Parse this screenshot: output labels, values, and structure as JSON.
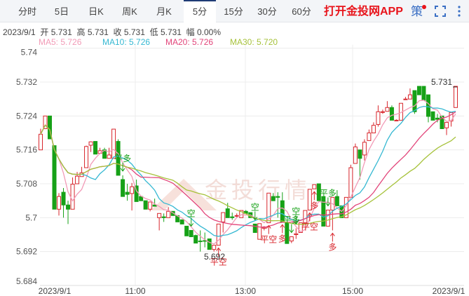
{
  "tabs": [
    {
      "label": "分时"
    },
    {
      "label": "5日"
    },
    {
      "label": "日K"
    },
    {
      "label": "周K"
    },
    {
      "label": "月K"
    },
    {
      "label": "5分",
      "active": true
    },
    {
      "label": "15分"
    },
    {
      "label": "30分"
    },
    {
      "label": "60分"
    }
  ],
  "header": {
    "app_link": "打开金投网APP",
    "strategy_label": "策",
    "icons": [
      "fullscreen-icon",
      "more-vertical-icon"
    ]
  },
  "info": {
    "date": "2023/9/1",
    "open_label": "开",
    "open": "5.731",
    "high_label": "高",
    "high": "5.731",
    "close_label": "收",
    "close": "5.731",
    "low_label": "低",
    "low": "5.731",
    "change_label": "幅",
    "change": "0.00%"
  },
  "ma_legend": [
    {
      "text": "MA5: 5.726",
      "color": "#f29bb7"
    },
    {
      "text": "MA10: 5.726",
      "color": "#35b8d2"
    },
    {
      "text": "MA20: 5.726",
      "color": "#e2457a"
    },
    {
      "text": "MA30: 5.720",
      "color": "#a6c23a"
    }
  ],
  "watermark": "金投行情",
  "chart_data": {
    "type": "candlestick",
    "interval": "5分",
    "ylim": [
      5.684,
      5.74
    ],
    "y_ticks": [
      "5.74",
      "5.732",
      "5.724",
      "5.716",
      "5.708",
      "5.7",
      "5.692",
      "5.684"
    ],
    "x_ticks": [
      "2023/9/1",
      "11:00",
      "13:00",
      "15:00",
      "2023/9/1"
    ],
    "grid": true,
    "colors": {
      "up": "#d8262c",
      "down": "#16a117"
    },
    "max_label": "5.731",
    "min_label": "5.692",
    "ohlc": [
      [
        5.716,
        5.721,
        5.716,
        5.7197
      ],
      [
        5.721,
        5.724,
        5.721,
        5.724
      ],
      [
        5.724,
        5.724,
        5.7186,
        5.7186
      ],
      [
        5.717,
        5.717,
        5.702,
        5.702
      ],
      [
        5.702,
        5.7058,
        5.7005,
        5.705
      ],
      [
        5.706,
        5.707,
        5.7,
        5.703
      ],
      [
        5.703,
        5.704,
        5.6985,
        5.702
      ],
      [
        5.702,
        5.7095,
        5.702,
        5.7079
      ],
      [
        5.708,
        5.7108,
        5.708,
        5.7098
      ],
      [
        5.7097,
        5.712,
        5.7097,
        5.7106
      ],
      [
        5.7118,
        5.717,
        5.7118,
        5.7168
      ],
      [
        5.7171,
        5.718,
        5.7155,
        5.7179
      ],
      [
        5.718,
        5.718,
        5.715,
        5.715
      ],
      [
        5.7152,
        5.7165,
        5.715,
        5.7158
      ],
      [
        5.716,
        5.7165,
        5.714,
        5.714
      ],
      [
        5.714,
        5.7165,
        5.714,
        5.7148
      ],
      [
        5.714,
        5.7209,
        5.714,
        5.7209
      ],
      [
        5.718,
        5.7185,
        5.71,
        5.71
      ],
      [
        5.709,
        5.71,
        5.705,
        5.705
      ],
      [
        5.706,
        5.708,
        5.704,
        5.7055
      ],
      [
        5.7057,
        5.7082,
        5.7017,
        5.7073
      ],
      [
        5.7075,
        5.709,
        5.7038,
        5.7038
      ],
      [
        5.705,
        5.705,
        5.704,
        5.704
      ],
      [
        5.704,
        5.704,
        5.702,
        5.702
      ],
      [
        5.702,
        5.7037,
        5.7015,
        5.7037
      ],
      [
        5.703,
        5.7045,
        5.7027,
        5.7027
      ],
      [
        5.7,
        5.701,
        5.697,
        5.701
      ],
      [
        5.7002,
        5.701,
        5.699,
        5.7
      ],
      [
        5.7,
        5.7025,
        5.7,
        5.7015
      ],
      [
        5.7015,
        5.7015,
        5.7005,
        5.7005
      ],
      [
        5.7005,
        5.7005,
        5.699,
        5.699
      ],
      [
        5.6995,
        5.6995,
        5.6985,
        5.6985
      ],
      [
        5.698,
        5.698,
        5.6957,
        5.6957
      ],
      [
        5.697,
        5.697,
        5.6955,
        5.6955
      ],
      [
        5.6958,
        5.696,
        5.694,
        5.694
      ],
      [
        5.6945,
        5.697,
        5.692,
        5.6944
      ],
      [
        5.6946,
        5.6965,
        5.693,
        5.6945
      ],
      [
        5.695,
        5.695,
        5.6925,
        5.6925
      ],
      [
        5.6925,
        5.6935,
        5.692,
        5.6935
      ],
      [
        5.6935,
        5.6985,
        5.6935,
        5.6985
      ],
      [
        5.699,
        5.7012,
        5.6965,
        5.7012
      ],
      [
        5.7021,
        5.7035,
        5.7,
        5.7
      ],
      [
        5.7002,
        5.7012,
        5.6995,
        5.7
      ],
      [
        5.7005,
        5.701,
        5.7,
        5.7005
      ],
      [
        5.7,
        5.7017,
        5.7,
        5.7017
      ],
      [
        5.7015,
        5.7018,
        5.701,
        5.701
      ],
      [
        5.7012,
        5.7012,
        5.7,
        5.7
      ],
      [
        5.6985,
        5.6985,
        5.6965,
        5.6965
      ],
      [
        5.6949,
        5.6986,
        5.6949,
        5.6986
      ],
      [
        5.6975,
        5.698,
        5.697,
        5.6978
      ],
      [
        5.6988,
        5.7058,
        5.6988,
        5.7058
      ],
      [
        5.705,
        5.7058,
        5.704,
        5.704
      ],
      [
        5.705,
        5.706,
        5.7,
        5.7048
      ],
      [
        5.704,
        5.706,
        5.699,
        5.699
      ],
      [
        5.6988,
        5.6988,
        5.6939,
        5.6939
      ],
      [
        5.6945,
        5.6955,
        5.694,
        5.6955
      ],
      [
        5.696,
        5.6975,
        5.695,
        5.6962
      ],
      [
        5.6965,
        5.6988,
        5.6965,
        5.6988
      ],
      [
        5.6988,
        5.7017,
        5.6988,
        5.7017
      ],
      [
        5.7018,
        5.7067,
        5.7018,
        5.7067
      ],
      [
        5.7068,
        5.7078,
        5.7068,
        5.7078
      ],
      [
        5.708,
        5.708,
        5.704,
        5.704
      ],
      [
        5.705,
        5.705,
        5.698,
        5.698
      ],
      [
        5.698,
        5.7018,
        5.698,
        5.7018
      ],
      [
        5.7018,
        5.7048,
        5.697,
        5.7048
      ],
      [
        5.705,
        5.7065,
        5.7028,
        5.7028
      ],
      [
        5.7028,
        5.7028,
        5.7,
        5.7
      ],
      [
        5.7,
        5.7048,
        5.7,
        5.7048
      ],
      [
        5.7048,
        5.7125,
        5.7048,
        5.7118
      ],
      [
        5.7128,
        5.7175,
        5.7128,
        5.7167
      ],
      [
        5.716,
        5.716,
        5.709,
        5.714
      ],
      [
        5.7148,
        5.7185,
        5.7135,
        5.7178
      ],
      [
        5.7182,
        5.7208,
        5.7182,
        5.72
      ],
      [
        5.72,
        5.7225,
        5.72,
        5.7218
      ],
      [
        5.722,
        5.7265,
        5.7215,
        5.725
      ],
      [
        5.725,
        5.7255,
        5.7245,
        5.725
      ],
      [
        5.7251,
        5.7275,
        5.7251,
        5.726
      ],
      [
        5.726,
        5.7265,
        5.723,
        5.723
      ],
      [
        5.723,
        5.7232,
        5.7228,
        5.723
      ],
      [
        5.723,
        5.727,
        5.723,
        5.727
      ],
      [
        5.728,
        5.7285,
        5.7278,
        5.728
      ],
      [
        5.728,
        5.7305,
        5.728,
        5.729
      ],
      [
        5.73,
        5.73,
        5.7245,
        5.725
      ],
      [
        5.731,
        5.731,
        5.729,
        5.729
      ],
      [
        5.731,
        5.731,
        5.7277,
        5.7277
      ],
      [
        5.729,
        5.729,
        5.7225,
        5.7239
      ],
      [
        5.725,
        5.725,
        5.723,
        5.723
      ],
      [
        5.7235,
        5.7245,
        5.7225,
        5.7232
      ],
      [
        5.724,
        5.724,
        5.721,
        5.721
      ],
      [
        5.7212,
        5.7225,
        5.7195,
        5.7225
      ],
      [
        5.7228,
        5.7248,
        5.7215,
        5.7248
      ],
      [
        5.726,
        5.731,
        5.726,
        5.731
      ]
    ],
    "signals": [
      {
        "index": 18,
        "text": "平多",
        "side": "above",
        "color": "#16a117"
      },
      {
        "index": 33,
        "text": "空",
        "side": "above",
        "color": "#16a117"
      },
      {
        "index": 39,
        "text": "平空",
        "side": "below",
        "color": "#d8262c"
      },
      {
        "index": 47,
        "text": "空",
        "side": "above",
        "color": "#16a117"
      },
      {
        "index": 50,
        "text": "平空",
        "side": "below",
        "color": "#d8262c"
      },
      {
        "index": 53,
        "text": "多",
        "side": "below",
        "color": "#d8262c"
      },
      {
        "index": 55,
        "text": "平多",
        "side": "above",
        "color": "#16a117"
      },
      {
        "index": 56,
        "text": "空",
        "side": "above",
        "color": "#16a117"
      },
      {
        "index": 59,
        "text": "平空",
        "side": "below",
        "color": "#d8262c"
      },
      {
        "index": 60,
        "text": "多",
        "side": "below",
        "color": "#d8262c"
      },
      {
        "index": 63,
        "text": "平多",
        "side": "above",
        "color": "#16a117"
      },
      {
        "index": 64,
        "text": "多",
        "side": "below",
        "color": "#d8262c"
      }
    ]
  }
}
